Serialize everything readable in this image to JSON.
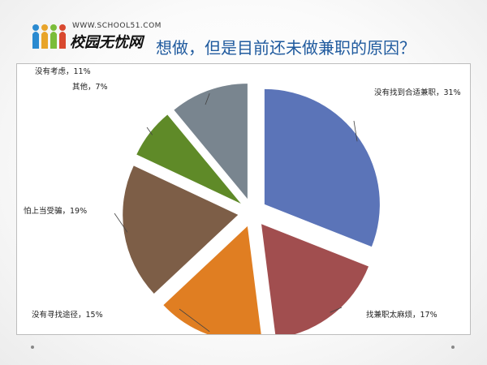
{
  "header": {
    "logo_url": "WWW.SCHOOL51.COM",
    "logo_name": "校园无忧网",
    "title": "想做，但是目前还未做兼职的原因？"
  },
  "chart_data": {
    "type": "pie",
    "title": "",
    "exploded": true,
    "slices": [
      {
        "label": "没有找到合适兼职，31%",
        "value": 31,
        "color": "#5b74b8"
      },
      {
        "label": "找兼职太麻烦，17%",
        "value": 17,
        "color": "#a14e4f"
      },
      {
        "label": "没有寻找途径，15%",
        "value": 15,
        "color": "#e07e22"
      },
      {
        "label": "怕上当受骗，19%",
        "value": 19,
        "color": "#7d5e47"
      },
      {
        "label": "其他，7%",
        "value": 7,
        "color": "#5f8a28"
      },
      {
        "label": "没有考虑，11%",
        "value": 11,
        "color": "#79858f"
      }
    ]
  }
}
